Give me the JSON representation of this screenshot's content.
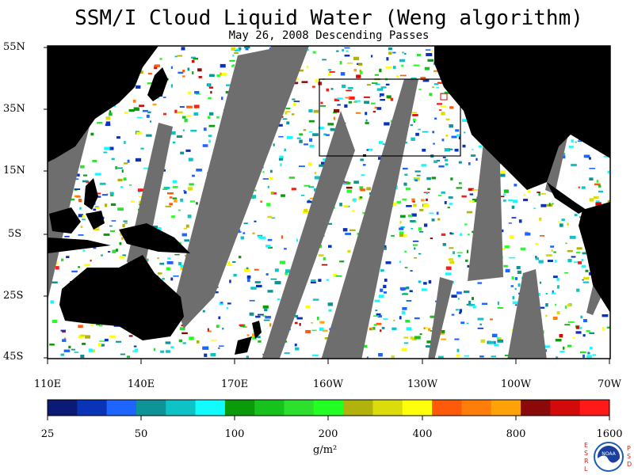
{
  "header": {
    "title": "SSM/I Cloud Liquid Water (Weng algorithm)",
    "subtitle": "May 26, 2008  Descending Passes"
  },
  "map": {
    "projection": "equirectangular",
    "lon_range": [
      "110E",
      "70W"
    ],
    "lat_range": [
      "45S",
      "55N"
    ],
    "lat_labels": [
      "55N",
      "35N",
      "15N",
      "5S",
      "25S",
      "45S"
    ],
    "lon_labels": [
      "110E",
      "140E",
      "170E",
      "160W",
      "130W",
      "100W",
      "70W"
    ],
    "land_color": "#000000",
    "no_data_color": "#6e6e6e",
    "ocean_clear_color": "#ffffff",
    "region_box": "black rectangle over NE Pacific"
  },
  "colorbar": {
    "colors": [
      "#0b1a74",
      "#0a34b8",
      "#1e64ff",
      "#0e9496",
      "#0dc3c6",
      "#12fbff",
      "#0b9a0b",
      "#18c21c",
      "#2ee02e",
      "#24ff24",
      "#b2b20c",
      "#dcdc0c",
      "#ffff0c",
      "#ff5a0a",
      "#ff7e0a",
      "#ffa20a",
      "#8a0a0a",
      "#d20a0a",
      "#ff1a1a"
    ],
    "labels": [
      "25",
      "50",
      "100",
      "200",
      "400",
      "800",
      "1600"
    ],
    "units": "g/m²"
  },
  "logo": {
    "left_letters": "E S R L",
    "right_letters": "P S D",
    "emblem": "NOAA"
  }
}
